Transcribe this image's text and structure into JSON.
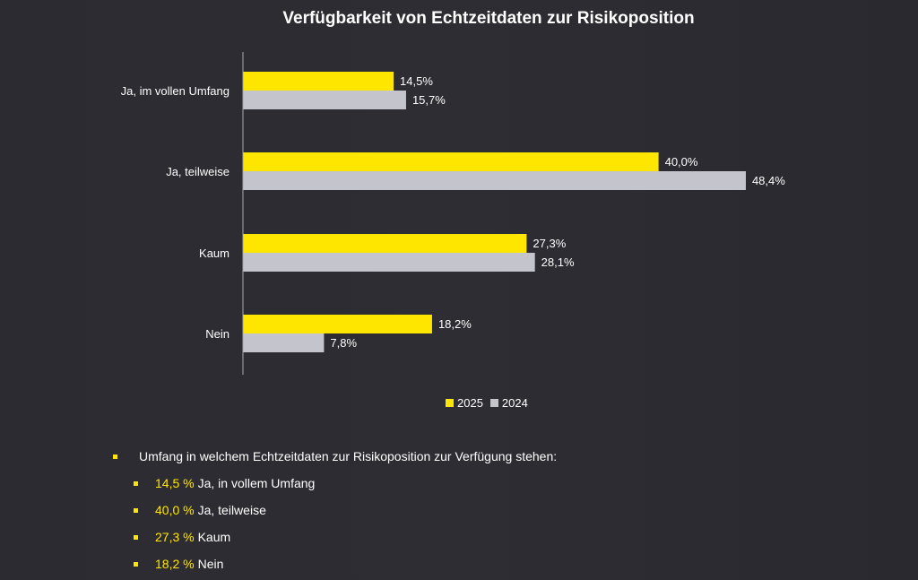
{
  "chart_data": {
    "type": "bar",
    "orientation": "horizontal",
    "title": "Verfügbarkeit von Echtzeitdaten zur Risikoposition",
    "categories": [
      "Ja, im vollen Umfang",
      "Ja, teilweise",
      "Kaum",
      "Nein"
    ],
    "series": [
      {
        "name": "2025",
        "color": "#ffe600",
        "values": [
          14.5,
          40.0,
          27.3,
          18.2
        ],
        "labels": [
          "14,5%",
          "40,0%",
          "27,3%",
          "18,2%"
        ]
      },
      {
        "name": "2024",
        "color": "#c4c4cd",
        "values": [
          15.7,
          48.4,
          28.1,
          7.8
        ],
        "labels": [
          "15,7%",
          "48,4%",
          "28,1%",
          "7,8%"
        ]
      }
    ],
    "xlim": [
      0,
      50
    ],
    "grid": false,
    "legend_position": "bottom"
  },
  "notes": {
    "heading": "Umfang in welchem Echtzeitdaten zur Risikoposition zur Verfügung stehen:",
    "items": [
      {
        "pct": "14,5 %",
        "text": "Ja, in vollem Umfang"
      },
      {
        "pct": "40,0 %",
        "text": "Ja, teilweise"
      },
      {
        "pct": "27,3 %",
        "text": "Kaum"
      },
      {
        "pct": "18,2 %",
        "text": "Nein"
      }
    ]
  },
  "colors": {
    "accent": "#ffe600",
    "secondary": "#c4c4cd",
    "background": "#2b2b31"
  }
}
